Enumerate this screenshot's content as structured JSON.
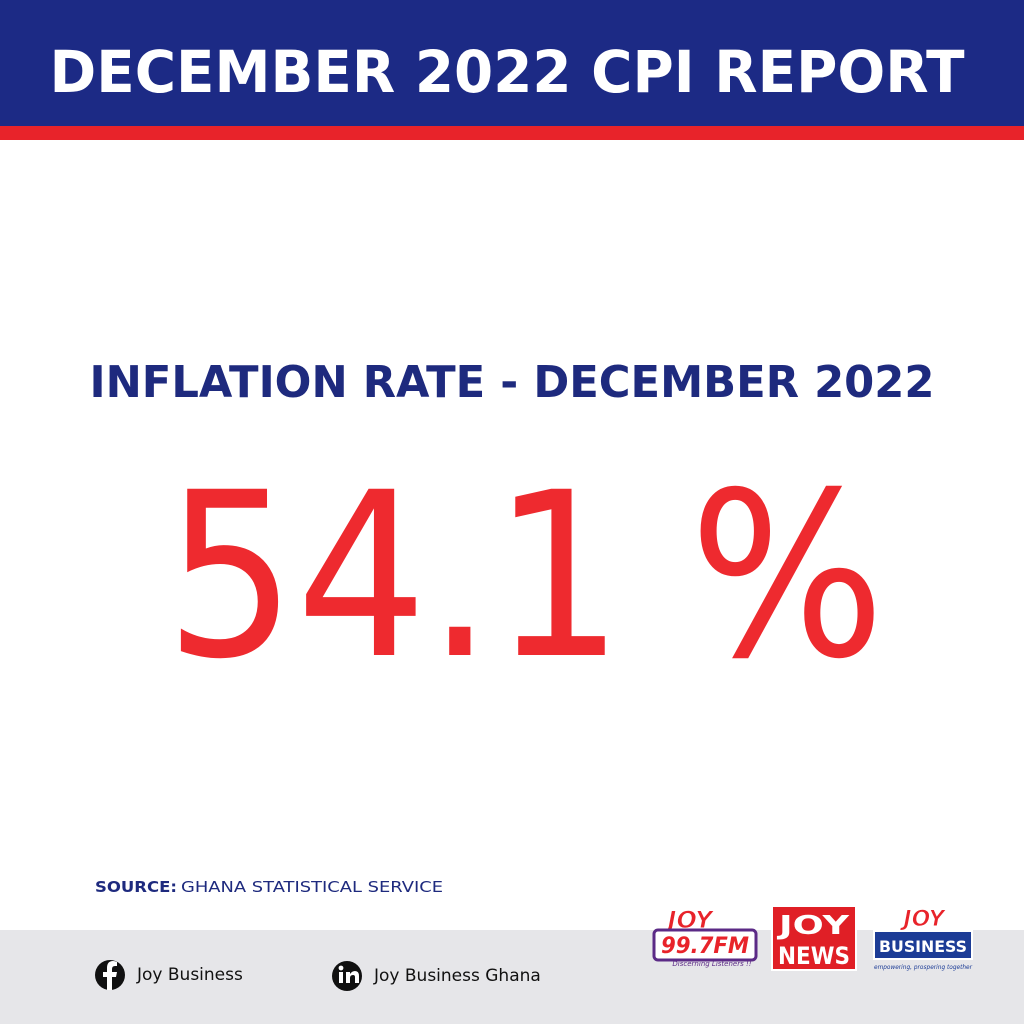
{
  "header": {
    "title": "DECEMBER 2022 CPI REPORT"
  },
  "headline": "INFLATION RATE - DECEMBER 2022",
  "rate": "54.1 %",
  "source": {
    "label": "SOURCE:",
    "text": "GHANA STATISTICAL SERVICE"
  },
  "footer": {
    "social": [
      {
        "label": "Joy Business"
      },
      {
        "label": "Joy Business Ghana"
      }
    ],
    "logos": [
      {
        "name": "JOY",
        "band": "99.7FM",
        "tagline": "Discerning Listeners !!"
      },
      {
        "top": "JOY",
        "bottom": "NEWS"
      },
      {
        "name": "JOY",
        "band": "BUSINESS",
        "tagline": "empowering, prospering together"
      }
    ]
  }
}
